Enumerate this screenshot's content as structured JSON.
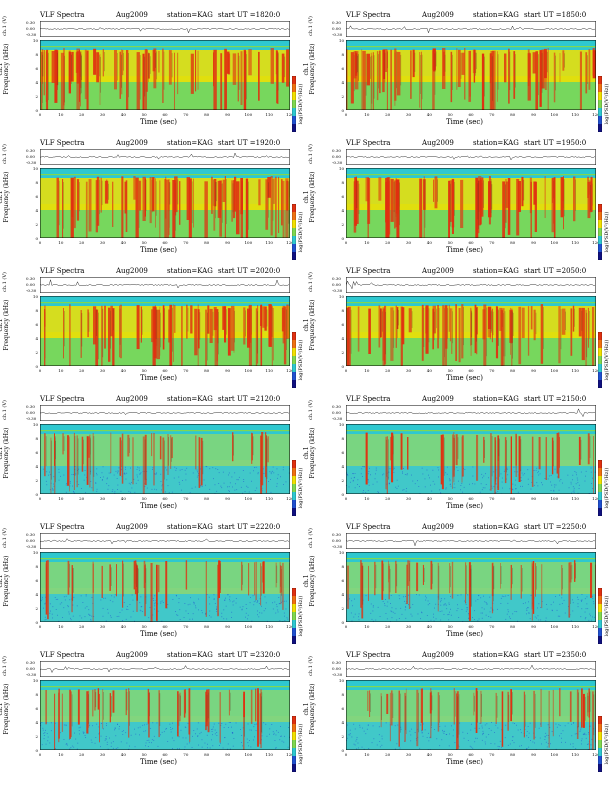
{
  "figure": {
    "title_prefix": "VLF Spectra",
    "date": "Aug2009",
    "station": "station=KAG",
    "start_prefix": "start  UT =",
    "timeseries_label": "ch.1 (V)",
    "freq_label_line1": "ch.1",
    "freq_label_line2": "Frequency  (kHz)",
    "colorbar_label": "log(PSD(V²/Hz))",
    "xlabel": "Time  (sec)",
    "colors": {
      "background": "#2ec8d0",
      "high": "#e03010",
      "mid": "#f2e000",
      "low": "#80d850",
      "floor": "#2050d0"
    }
  },
  "chart_data": [
    {
      "type": "heatmap",
      "panel": 1,
      "start_ut": "1820:0",
      "xlim": [
        0,
        120
      ],
      "ylim": [
        0,
        10
      ],
      "ts_ticks": [
        "0.30",
        "0.00",
        "-0.30"
      ],
      "x_ticks": [
        0,
        10,
        20,
        30,
        40,
        50,
        60,
        70,
        80,
        90,
        100,
        110,
        120
      ],
      "y_ticks": [
        0,
        2,
        4,
        6,
        8,
        10
      ]
    },
    {
      "type": "heatmap",
      "panel": 2,
      "start_ut": "1850:0",
      "xlim": [
        0,
        120
      ],
      "ylim": [
        0,
        10
      ],
      "ts_ticks": [
        "0.30",
        "0.00",
        "-0.30"
      ],
      "x_ticks": [
        0,
        10,
        20,
        30,
        40,
        50,
        60,
        70,
        80,
        90,
        100,
        110,
        120
      ],
      "y_ticks": [
        0,
        2,
        4,
        6,
        8,
        10
      ]
    },
    {
      "type": "heatmap",
      "panel": 3,
      "start_ut": "1920:0",
      "xlim": [
        0,
        120
      ],
      "ylim": [
        0,
        10
      ],
      "ts_ticks": [
        "0.30",
        "0.00",
        "-0.30"
      ],
      "x_ticks": [
        0,
        10,
        20,
        30,
        40,
        50,
        60,
        70,
        80,
        90,
        100,
        110,
        120
      ],
      "y_ticks": [
        0,
        2,
        4,
        6,
        8,
        10
      ]
    },
    {
      "type": "heatmap",
      "panel": 4,
      "start_ut": "1950:0",
      "xlim": [
        0,
        120
      ],
      "ylim": [
        0,
        10
      ],
      "ts_ticks": [
        "0.30",
        "0.00",
        "-0.30"
      ],
      "x_ticks": [
        0,
        10,
        20,
        30,
        40,
        50,
        60,
        70,
        80,
        90,
        100,
        110,
        120
      ],
      "y_ticks": [
        0,
        2,
        4,
        6,
        8,
        10
      ]
    },
    {
      "type": "heatmap",
      "panel": 5,
      "start_ut": "2020:0",
      "xlim": [
        0,
        120
      ],
      "ylim": [
        0,
        10
      ],
      "ts_ticks": [
        "0.30",
        "0.00",
        "-0.30"
      ],
      "x_ticks": [
        0,
        10,
        20,
        30,
        40,
        50,
        60,
        70,
        80,
        90,
        100,
        110,
        120
      ],
      "y_ticks": [
        0,
        2,
        4,
        6,
        8,
        10
      ]
    },
    {
      "type": "heatmap",
      "panel": 6,
      "start_ut": "2050:0",
      "xlim": [
        0,
        120
      ],
      "ylim": [
        0,
        10
      ],
      "ts_ticks": [
        "0.30",
        "0.00",
        "-0.30"
      ],
      "x_ticks": [
        0,
        10,
        20,
        30,
        40,
        50,
        60,
        70,
        80,
        90,
        100,
        110,
        120
      ],
      "y_ticks": [
        0,
        2,
        4,
        6,
        8,
        10
      ]
    },
    {
      "type": "heatmap",
      "panel": 7,
      "start_ut": "2120:0",
      "xlim": [
        0,
        120
      ],
      "ylim": [
        0,
        10
      ],
      "ts_ticks": [
        "0.30",
        "0.00",
        "-0.30"
      ],
      "x_ticks": [
        0,
        10,
        20,
        30,
        40,
        50,
        60,
        70,
        80,
        90,
        100,
        110,
        120
      ],
      "y_ticks": [
        0,
        2,
        4,
        6,
        8,
        10
      ]
    },
    {
      "type": "heatmap",
      "panel": 8,
      "start_ut": "2150:0",
      "xlim": [
        0,
        120
      ],
      "ylim": [
        0,
        10
      ],
      "ts_ticks": [
        "0.30",
        "0.00",
        "-0.30"
      ],
      "x_ticks": [
        0,
        10,
        20,
        30,
        40,
        50,
        60,
        70,
        80,
        90,
        100,
        110,
        120
      ],
      "y_ticks": [
        0,
        2,
        4,
        6,
        8,
        10
      ]
    },
    {
      "type": "heatmap",
      "panel": 9,
      "start_ut": "2220:0",
      "xlim": [
        0,
        120
      ],
      "ylim": [
        0,
        10
      ],
      "ts_ticks": [
        "0.30",
        "0.00",
        "-0.30"
      ],
      "x_ticks": [
        0,
        10,
        20,
        30,
        40,
        50,
        60,
        70,
        80,
        90,
        100,
        110,
        120
      ],
      "y_ticks": [
        0,
        2,
        4,
        6,
        8,
        10
      ]
    },
    {
      "type": "heatmap",
      "panel": 10,
      "start_ut": "2250:0",
      "xlim": [
        0,
        120
      ],
      "ylim": [
        0,
        10
      ],
      "ts_ticks": [
        "0.30",
        "0.00",
        "-0.30"
      ],
      "x_ticks": [
        0,
        10,
        20,
        30,
        40,
        50,
        60,
        70,
        80,
        90,
        100,
        110,
        120
      ],
      "y_ticks": [
        0,
        2,
        4,
        6,
        8,
        10
      ]
    },
    {
      "type": "heatmap",
      "panel": 11,
      "start_ut": "2320:0",
      "xlim": [
        0,
        120
      ],
      "ylim": [
        0,
        10
      ],
      "ts_ticks": [
        "0.30",
        "0.00",
        "-0.30"
      ],
      "x_ticks": [
        0,
        10,
        20,
        30,
        40,
        50,
        60,
        70,
        80,
        90,
        100,
        110,
        120
      ],
      "y_ticks": [
        0,
        2,
        4,
        6,
        8,
        10
      ]
    },
    {
      "type": "heatmap",
      "panel": 12,
      "start_ut": "2350:0",
      "xlim": [
        0,
        120
      ],
      "ylim": [
        0,
        10
      ],
      "ts_ticks": [
        "0.30",
        "0.00",
        "-0.30"
      ],
      "x_ticks": [
        0,
        10,
        20,
        30,
        40,
        50,
        60,
        70,
        80,
        90,
        100,
        110,
        120
      ],
      "y_ticks": [
        0,
        2,
        4,
        6,
        8,
        10
      ]
    }
  ]
}
